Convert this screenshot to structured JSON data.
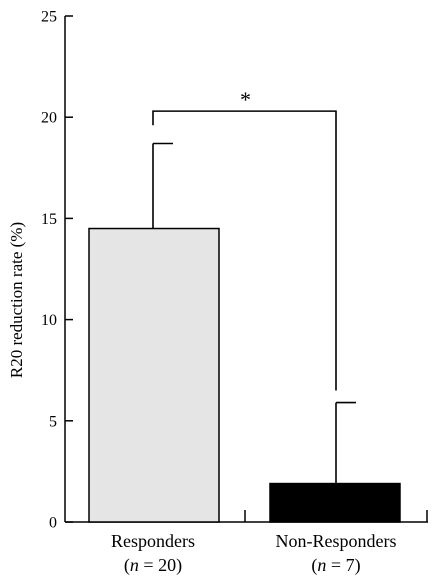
{
  "chart_data": {
    "type": "bar",
    "ylabel": "R20 reduction rate (%)",
    "ylim": [
      0,
      25
    ],
    "yticks": [
      0,
      5,
      10,
      15,
      20,
      25
    ],
    "grid": false,
    "bars": [
      {
        "label": "Responders",
        "n_label_pre": "(",
        "n_symbol": "n",
        "n_label_post": " = 20)",
        "value": 14.5,
        "error": 4.2,
        "fill": "#e5e5e5"
      },
      {
        "label": "Non-Responders",
        "n_label_pre": "(",
        "n_symbol": "n",
        "n_label_post": " = 7)",
        "value": 1.9,
        "error": 4.0,
        "fill": "#000000"
      }
    ],
    "significance": {
      "mark": "*",
      "left_bar_end": 19.6,
      "right_bar_end": 6.5,
      "bracket_level": 20.3
    }
  }
}
